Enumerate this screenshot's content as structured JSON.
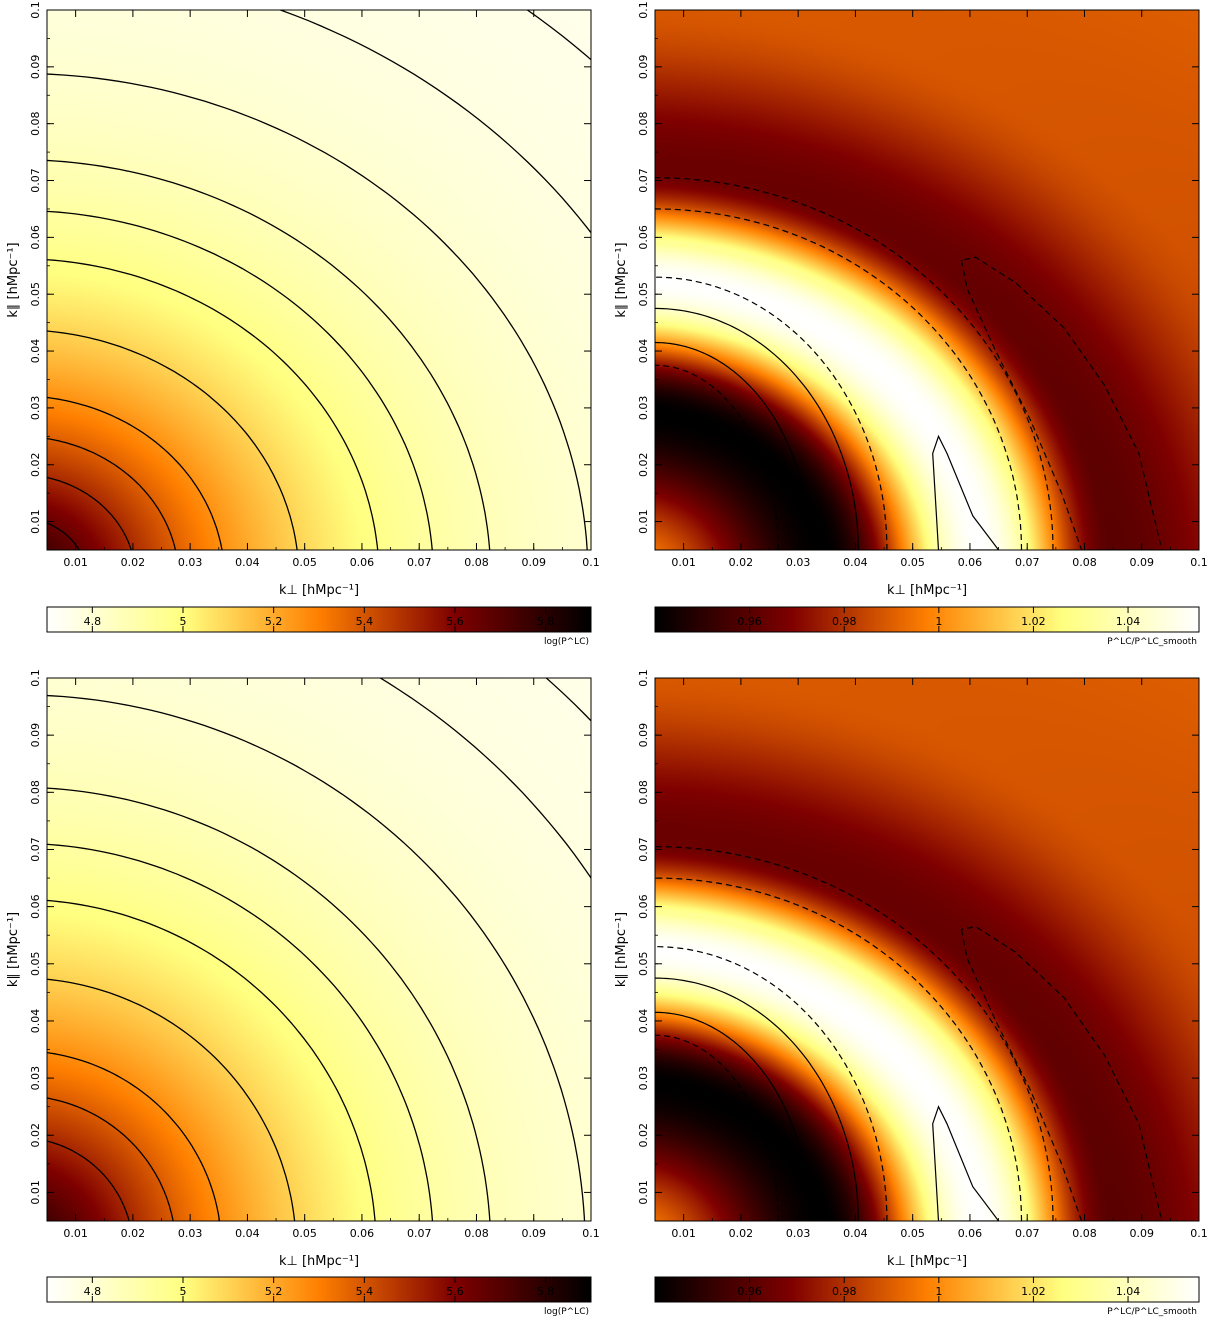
{
  "chart_data": [
    {
      "type": "heatmap",
      "panel": "top-left",
      "xlabel": "k⊥ [hMpc⁻¹]",
      "ylabel": "k∥ [hMpc⁻¹]",
      "xlim": [
        0.005,
        0.1
      ],
      "ylim": [
        0.005,
        0.1
      ],
      "x_ticks": [
        "0.01",
        "0.02",
        "0.03",
        "0.04",
        "0.05",
        "0.06",
        "0.07",
        "0.08",
        "0.09",
        "0.1"
      ],
      "y_ticks": [
        "0.01",
        "0.02",
        "0.03",
        "0.04",
        "0.05",
        "0.06",
        "0.07",
        "0.08",
        "0.09",
        "0.1"
      ],
      "colormap": "afmhot_reversed",
      "colorbar": {
        "label": "log(P^LC)",
        "range": [
          4.7,
          5.9
        ],
        "ticks": [
          "4.8",
          "5",
          "5.2",
          "5.4",
          "5.6",
          "5.8"
        ],
        "tick_values": [
          4.8,
          5.0,
          5.2,
          5.4,
          5.6,
          5.8
        ]
      },
      "anisotropy": 1.12,
      "solid_contours": [
        {
          "crossing_k_perp": 0.012,
          "style": "solid"
        },
        {
          "crossing_k_perp": 0.0205,
          "style": "solid"
        },
        {
          "crossing_k_perp": 0.028,
          "style": "solid"
        },
        {
          "crossing_k_perp": 0.036,
          "style": "solid"
        },
        {
          "crossing_k_perp": 0.049,
          "style": "solid"
        },
        {
          "crossing_k_perp": 0.063,
          "style": "solid"
        },
        {
          "crossing_k_perp": 0.0725,
          "style": "solid"
        },
        {
          "crossing_k_perp": 0.0825,
          "style": "solid"
        },
        {
          "crossing_k_perp": 0.0995,
          "style": "solid"
        },
        {
          "crossing_k_perp": 0.121,
          "style": "solid"
        },
        {
          "crossing_k_perp": 0.143,
          "style": "solid"
        }
      ]
    },
    {
      "type": "heatmap",
      "panel": "top-right",
      "xlabel": "k⊥ [hMpc⁻¹]",
      "ylabel": "k∥ [hMpc⁻¹]",
      "xlim": [
        0.005,
        0.1
      ],
      "ylim": [
        0.005,
        0.1
      ],
      "x_ticks": [
        "0.01",
        "0.02",
        "0.03",
        "0.04",
        "0.05",
        "0.06",
        "0.07",
        "0.08",
        "0.09",
        "0.1"
      ],
      "y_ticks": [
        "0.01",
        "0.02",
        "0.03",
        "0.04",
        "0.05",
        "0.06",
        "0.07",
        "0.08",
        "0.09",
        "0.1"
      ],
      "colormap": "afmhot",
      "colorbar": {
        "label": "P^LC/P^LC_smooth",
        "range": [
          0.94,
          1.055
        ],
        "ticks": [
          "0.96",
          "0.98",
          "1",
          "1.02",
          "1.04"
        ],
        "tick_values": [
          0.96,
          0.98,
          1.0,
          1.02,
          1.04
        ]
      },
      "rings": [
        {
          "k_center": 0.035,
          "value": 0.94
        },
        {
          "k_center": 0.062,
          "value": 1.055
        },
        {
          "k_center": 0.085,
          "value": 0.96
        },
        {
          "k_center": 0.12,
          "value": 0.985
        }
      ],
      "contours": [
        {
          "shape": "arc",
          "style": "dashed",
          "crossing_k_perp": 0.0265,
          "crossing_k_par": 0.0225
        },
        {
          "shape": "arc",
          "style": "solid",
          "crossing_k_perp": 0.032,
          "crossing_k_par": 0.0265
        },
        {
          "shape": "arc",
          "style": "solid",
          "crossing_k_perp": 0.0405,
          "crossing_k_par": 0.0325
        },
        {
          "shape": "arc",
          "style": "dashed",
          "crossing_k_perp": 0.0455,
          "crossing_k_par": 0.038
        },
        {
          "shape": "arc",
          "style": "dashed",
          "crossing_k_perp": 0.069,
          "crossing_k_par": 0.05
        },
        {
          "shape": "arc",
          "style": "dashed",
          "crossing_k_perp": 0.0745,
          "crossing_k_par": 0.0555
        },
        {
          "shape": "closed",
          "style": "solid",
          "points": [
            [
              0.0545,
              0.005
            ],
            [
              0.0535,
              0.022
            ],
            [
              0.0545,
              0.025
            ],
            [
              0.056,
              0.022
            ],
            [
              0.0605,
              0.011
            ],
            [
              0.065,
              0.005
            ]
          ]
        },
        {
          "shape": "closed",
          "style": "dashed",
          "points": [
            [
              0.0585,
              0.056
            ],
            [
              0.0595,
              0.051
            ],
            [
              0.0645,
              0.04
            ],
            [
              0.0705,
              0.028
            ],
            [
              0.076,
              0.015
            ],
            [
              0.0795,
              0.005
            ],
            [
              0.0935,
              0.005
            ],
            [
              0.0895,
              0.022
            ],
            [
              0.0835,
              0.034
            ],
            [
              0.0765,
              0.044
            ],
            [
              0.068,
              0.052
            ],
            [
              0.061,
              0.0565
            ]
          ]
        }
      ]
    },
    {
      "type": "heatmap",
      "panel": "bottom-left",
      "xlabel": "k⊥ [hMpc⁻¹]",
      "ylabel": "k∥ [hMpc⁻¹]",
      "xlim": [
        0.005,
        0.1
      ],
      "ylim": [
        0.005,
        0.1
      ],
      "x_ticks": [
        "0.01",
        "0.02",
        "0.03",
        "0.04",
        "0.05",
        "0.06",
        "0.07",
        "0.08",
        "0.09",
        "0.1"
      ],
      "y_ticks": [
        "0.01",
        "0.02",
        "0.03",
        "0.04",
        "0.05",
        "0.06",
        "0.07",
        "0.08",
        "0.09",
        "0.1"
      ],
      "colormap": "afmhot_reversed",
      "colorbar": {
        "label": "log(P^LC)",
        "range": [
          4.7,
          5.9
        ],
        "ticks": [
          "4.8",
          "5",
          "5.2",
          "5.4",
          "5.6",
          "5.8"
        ],
        "tick_values": [
          4.8,
          5.0,
          5.2,
          5.4,
          5.6,
          5.8
        ]
      },
      "anisotropy": 1.02,
      "solid_contours": [
        {
          "crossing_k_perp": 0.02,
          "style": "solid"
        },
        {
          "crossing_k_perp": 0.0275,
          "style": "solid"
        },
        {
          "crossing_k_perp": 0.0355,
          "style": "solid"
        },
        {
          "crossing_k_perp": 0.0485,
          "style": "solid"
        },
        {
          "crossing_k_perp": 0.0625,
          "style": "solid"
        },
        {
          "crossing_k_perp": 0.0725,
          "style": "solid"
        },
        {
          "crossing_k_perp": 0.0825,
          "style": "solid"
        },
        {
          "crossing_k_perp": 0.099,
          "style": "solid"
        },
        {
          "crossing_k_perp": 0.12,
          "style": "solid"
        },
        {
          "crossing_k_perp": 0.1375,
          "style": "solid"
        }
      ]
    },
    {
      "type": "heatmap",
      "panel": "bottom-right",
      "xlabel": "k⊥ [hMpc⁻¹]",
      "ylabel": "k∥ [hMpc⁻¹]",
      "xlim": [
        0.005,
        0.1
      ],
      "ylim": [
        0.005,
        0.1
      ],
      "x_ticks": [
        "0.01",
        "0.02",
        "0.03",
        "0.04",
        "0.05",
        "0.06",
        "0.07",
        "0.08",
        "0.09",
        "0.1"
      ],
      "y_ticks": [
        "0.01",
        "0.02",
        "0.03",
        "0.04",
        "0.05",
        "0.06",
        "0.07",
        "0.08",
        "0.09",
        "0.1"
      ],
      "colormap": "afmhot",
      "colorbar": {
        "label": "P^LC/P^LC_smooth",
        "range": [
          0.94,
          1.055
        ],
        "ticks": [
          "0.96",
          "0.98",
          "1",
          "1.02",
          "1.04"
        ],
        "tick_values": [
          0.96,
          0.98,
          1.0,
          1.02,
          1.04
        ]
      },
      "rings": [
        {
          "k_center": 0.035,
          "value": 0.94
        },
        {
          "k_center": 0.062,
          "value": 1.055
        },
        {
          "k_center": 0.085,
          "value": 0.96
        },
        {
          "k_center": 0.12,
          "value": 0.985
        }
      ],
      "contours": [
        {
          "shape": "arc",
          "style": "dashed",
          "crossing_k_perp": 0.0265,
          "crossing_k_par": 0.0225
        },
        {
          "shape": "arc",
          "style": "solid",
          "crossing_k_perp": 0.032,
          "crossing_k_par": 0.0265
        },
        {
          "shape": "arc",
          "style": "solid",
          "crossing_k_perp": 0.0405,
          "crossing_k_par": 0.0325
        },
        {
          "shape": "arc",
          "style": "dashed",
          "crossing_k_perp": 0.0455,
          "crossing_k_par": 0.038
        },
        {
          "shape": "arc",
          "style": "dashed",
          "crossing_k_perp": 0.069,
          "crossing_k_par": 0.05
        },
        {
          "shape": "arc",
          "style": "dashed",
          "crossing_k_perp": 0.0745,
          "crossing_k_par": 0.0555
        },
        {
          "shape": "closed",
          "style": "solid",
          "points": [
            [
              0.0545,
              0.005
            ],
            [
              0.0535,
              0.022
            ],
            [
              0.0545,
              0.025
            ],
            [
              0.056,
              0.022
            ],
            [
              0.0605,
              0.011
            ],
            [
              0.065,
              0.005
            ]
          ]
        },
        {
          "shape": "closed",
          "style": "dashed",
          "points": [
            [
              0.0585,
              0.056
            ],
            [
              0.0595,
              0.051
            ],
            [
              0.0645,
              0.04
            ],
            [
              0.0705,
              0.028
            ],
            [
              0.076,
              0.015
            ],
            [
              0.0795,
              0.005
            ],
            [
              0.0935,
              0.005
            ],
            [
              0.0895,
              0.022
            ],
            [
              0.0835,
              0.034
            ],
            [
              0.0765,
              0.044
            ],
            [
              0.068,
              0.052
            ],
            [
              0.061,
              0.0565
            ]
          ]
        }
      ]
    }
  ]
}
